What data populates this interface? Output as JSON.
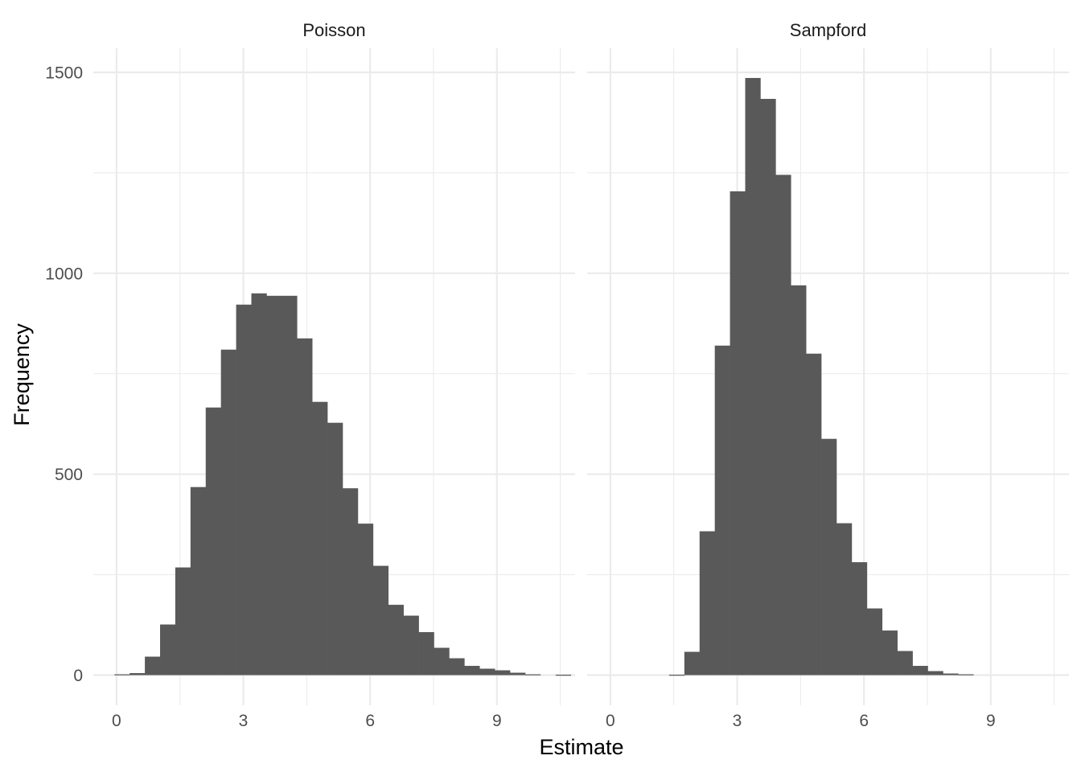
{
  "chart_data": {
    "type": "bar",
    "facets": [
      {
        "name": "Poisson",
        "bin_width": 0.36,
        "bin_start": -0.05,
        "counts": [
          2,
          5,
          46,
          126,
          268,
          468,
          666,
          810,
          922,
          950,
          944,
          944,
          838,
          680,
          628,
          465,
          377,
          272,
          175,
          148,
          107,
          68,
          42,
          23,
          16,
          12,
          6,
          2,
          0,
          1
        ]
      },
      {
        "name": "Sampford",
        "bin_width": 0.36,
        "bin_start": 1.39,
        "counts": [
          1,
          58,
          358,
          820,
          1204,
          1486,
          1434,
          1245,
          970,
          800,
          588,
          378,
          281,
          166,
          111,
          60,
          23,
          10,
          4,
          2
        ]
      }
    ],
    "xlabel": "Estimate",
    "ylabel": "Frequency",
    "x_ticks": [
      0,
      3,
      6,
      9
    ],
    "y_ticks": [
      0,
      500,
      1000,
      1500
    ],
    "xlim": [
      -0.55,
      10.85
    ],
    "ylim": [
      -75,
      1560
    ],
    "grid": true,
    "colors": {
      "bar": "#595959",
      "grid": "#ebebeb",
      "background": "#ffffff"
    }
  }
}
